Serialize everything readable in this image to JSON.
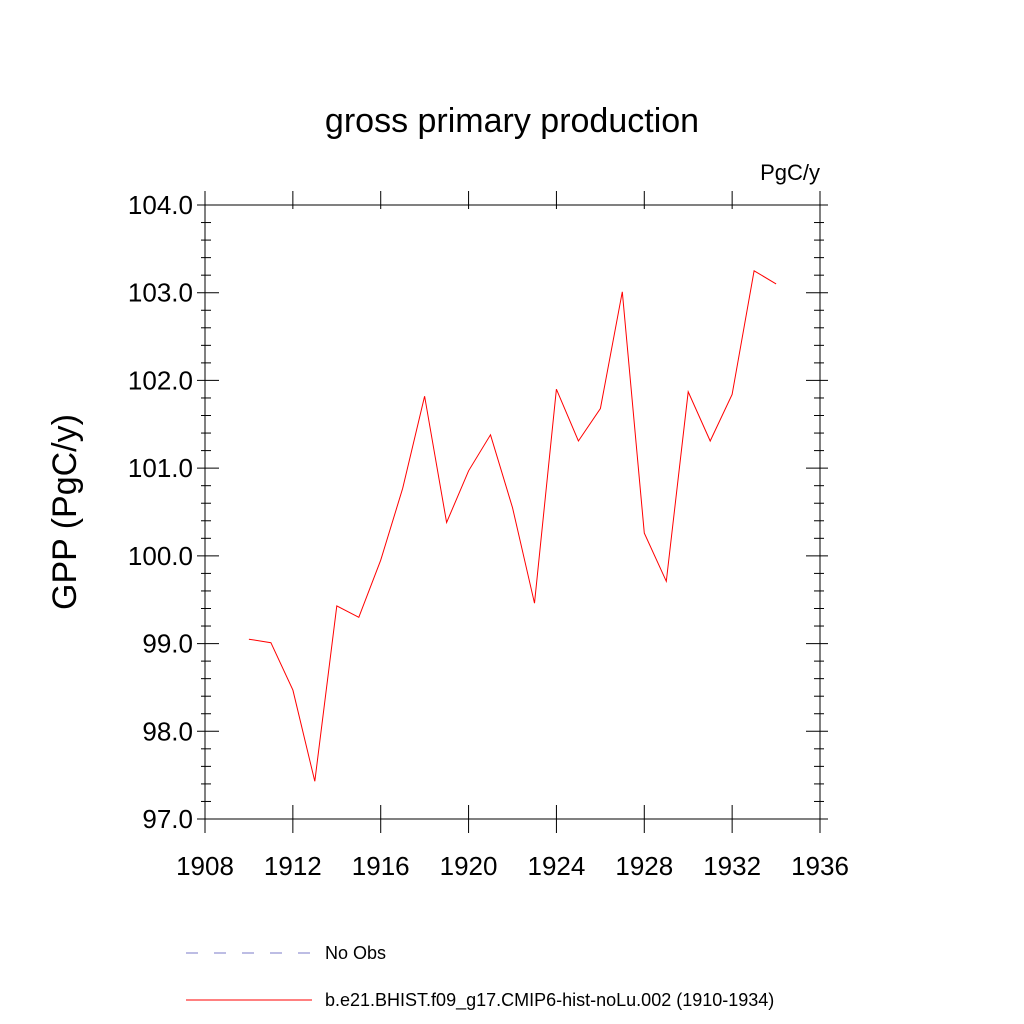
{
  "chart_data": {
    "type": "line",
    "title": "gross primary production",
    "units_label": "PgC/y",
    "xlabel": "",
    "ylabel": "GPP  (PgC/y)",
    "xlim": [
      1908,
      1936
    ],
    "ylim": [
      97.0,
      104.0
    ],
    "x_ticks": [
      1908,
      1912,
      1916,
      1920,
      1924,
      1928,
      1932,
      1936
    ],
    "x_tick_labels": [
      "1908",
      "1912",
      "1916",
      "1920",
      "1924",
      "1928",
      "1932",
      "1936"
    ],
    "y_ticks": [
      97.0,
      98.0,
      99.0,
      100.0,
      101.0,
      102.0,
      103.0,
      104.0
    ],
    "y_tick_labels": [
      "97.0",
      "98.0",
      "99.0",
      "100.0",
      "101.0",
      "102.0",
      "103.0",
      "104.0"
    ],
    "grid": false,
    "legend_position": "bottom",
    "series": [
      {
        "name": "b.e21.BHIST.f09_g17.CMIP6-hist-noLu.002 (1910-1934)",
        "color": "#ff0000",
        "x": [
          1910,
          1911,
          1912,
          1913,
          1914,
          1915,
          1916,
          1917,
          1918,
          1919,
          1920,
          1921,
          1922,
          1923,
          1924,
          1925,
          1926,
          1927,
          1928,
          1929,
          1930,
          1931,
          1932,
          1933,
          1934
        ],
        "values": [
          99.05,
          99.01,
          98.47,
          97.43,
          99.43,
          99.3,
          99.95,
          100.77,
          101.82,
          100.38,
          100.97,
          101.38,
          100.55,
          99.46,
          101.9,
          101.31,
          101.68,
          103.01,
          100.26,
          99.71,
          101.87,
          101.31,
          101.84,
          103.25,
          103.1
        ]
      }
    ],
    "legend": [
      {
        "label": "No Obs",
        "color": "#7b7bc9",
        "style": "dashed"
      },
      {
        "label": "b.e21.BHIST.f09_g17.CMIP6-hist-noLu.002 (1910-1934)",
        "color": "#ff0000",
        "style": "solid"
      }
    ]
  }
}
